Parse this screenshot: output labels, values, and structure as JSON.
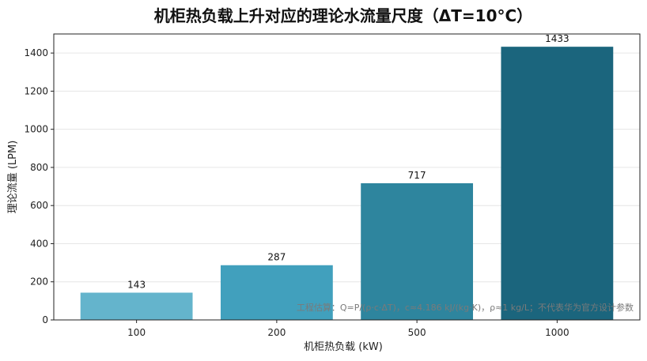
{
  "chart_data": {
    "type": "bar",
    "title": "机柜热负载上升对应的理论水流量尺度（ΔT=10°C）",
    "xlabel": "机柜热负载 (kW)",
    "ylabel": "理论流量 (LPM)",
    "categories": [
      "100",
      "200",
      "500",
      "1000"
    ],
    "values": [
      143,
      287,
      717,
      1433
    ],
    "data_labels": [
      "143",
      "287",
      "717",
      "1433"
    ],
    "ylim": [
      0,
      1500
    ],
    "yticks": [
      0,
      200,
      400,
      600,
      800,
      1000,
      1200,
      1400
    ],
    "grid": "horizontal",
    "bar_colors": [
      "#64b4cc",
      "#41a0bd",
      "#2e859e",
      "#1b657d"
    ],
    "annotation": "工程估算：Q=P/(ρ·c·ΔT)，c≈4.186 kJ/(kg·K)，ρ≈1 kg/L；不代表华为官方设计参数"
  }
}
